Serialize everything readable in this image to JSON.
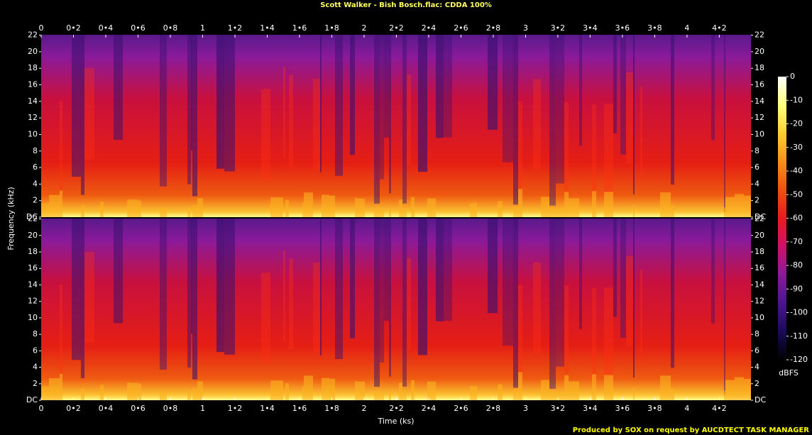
{
  "chart_data": {
    "type": "spectrogram",
    "title": "Scott Walker - Bish Bosch.flac: CDDA 100%",
    "x_label": "Time (ks)",
    "y_label": "Frequency (kHz)",
    "xlim": [
      0,
      4.396
    ],
    "xticks": [
      0,
      {
        "value": 0.2,
        "label": "0•2"
      },
      {
        "value": 0.4,
        "label": "0•4"
      },
      {
        "value": 0.6,
        "label": "0•6"
      },
      {
        "value": 0.8,
        "label": "0•8"
      },
      1,
      {
        "value": 1.2,
        "label": "1•2"
      },
      {
        "value": 1.4,
        "label": "1•4"
      },
      {
        "value": 1.6,
        "label": "1•6"
      },
      {
        "value": 1.8,
        "label": "1•8"
      },
      2,
      {
        "value": 2.2,
        "label": "2•2"
      },
      {
        "value": 2.4,
        "label": "2•4"
      },
      {
        "value": 2.6,
        "label": "2•6"
      },
      {
        "value": 2.8,
        "label": "2•8"
      },
      3,
      {
        "value": 3.2,
        "label": "3•2"
      },
      {
        "value": 3.4,
        "label": "3•4"
      },
      {
        "value": 3.6,
        "label": "3•6"
      },
      {
        "value": 3.8,
        "label": "3•8"
      },
      4,
      {
        "value": 4.2,
        "label": "4•2"
      }
    ],
    "ylim": [
      0,
      22.05
    ],
    "yticks": [
      {
        "value": 0,
        "label": "DC"
      },
      2,
      4,
      6,
      8,
      10,
      12,
      14,
      16,
      18,
      20,
      22
    ],
    "colorbar": {
      "label": "dBFS",
      "lim": [
        -120,
        0
      ],
      "ticks": [
        0,
        -10,
        -20,
        -30,
        -40,
        -50,
        -60,
        -70,
        -80,
        -90,
        -100,
        -110,
        -120
      ],
      "colors": [
        "#000000",
        "#1a0a5a",
        "#4a1590",
        "#8a1a9a",
        "#d0106a",
        "#e81a20",
        "#f05010",
        "#f89018",
        "#fcd030",
        "#ffff80",
        "#ffffff"
      ]
    },
    "footer": "Produced by SOX on request by AUCDTECT TASK MANAGER"
  }
}
